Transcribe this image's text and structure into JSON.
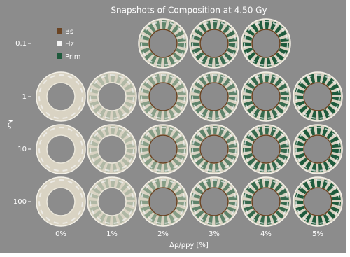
{
  "title": "Snapshots of Composition at 4.50 Gy",
  "legend": [
    {
      "name": "Bs",
      "color": "#6b4423"
    },
    {
      "name": "Hz",
      "color": "#f4f4f4"
    },
    {
      "name": "Prim",
      "color": "#1e5a3c"
    }
  ],
  "y_axis": {
    "label": "ζ",
    "ticks": [
      "0.1",
      "1",
      "10",
      "100"
    ]
  },
  "x_axis": {
    "label": "Δρ/ρpy [%]",
    "ticks": [
      "0%",
      "1%",
      "2%",
      "3%",
      "4%",
      "5%"
    ]
  }
}
